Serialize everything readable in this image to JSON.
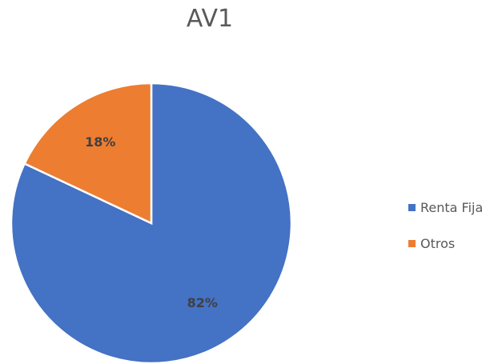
{
  "chart_data": {
    "type": "pie",
    "title": "AV1",
    "categories": [
      "Renta Fija",
      "Otros"
    ],
    "values": [
      82,
      18
    ],
    "labels": [
      "82%",
      "18%"
    ],
    "colors": [
      "#4472C4",
      "#ED7D31"
    ],
    "legend_position": "right",
    "start_angle_degrees": 0,
    "direction": "clockwise"
  }
}
